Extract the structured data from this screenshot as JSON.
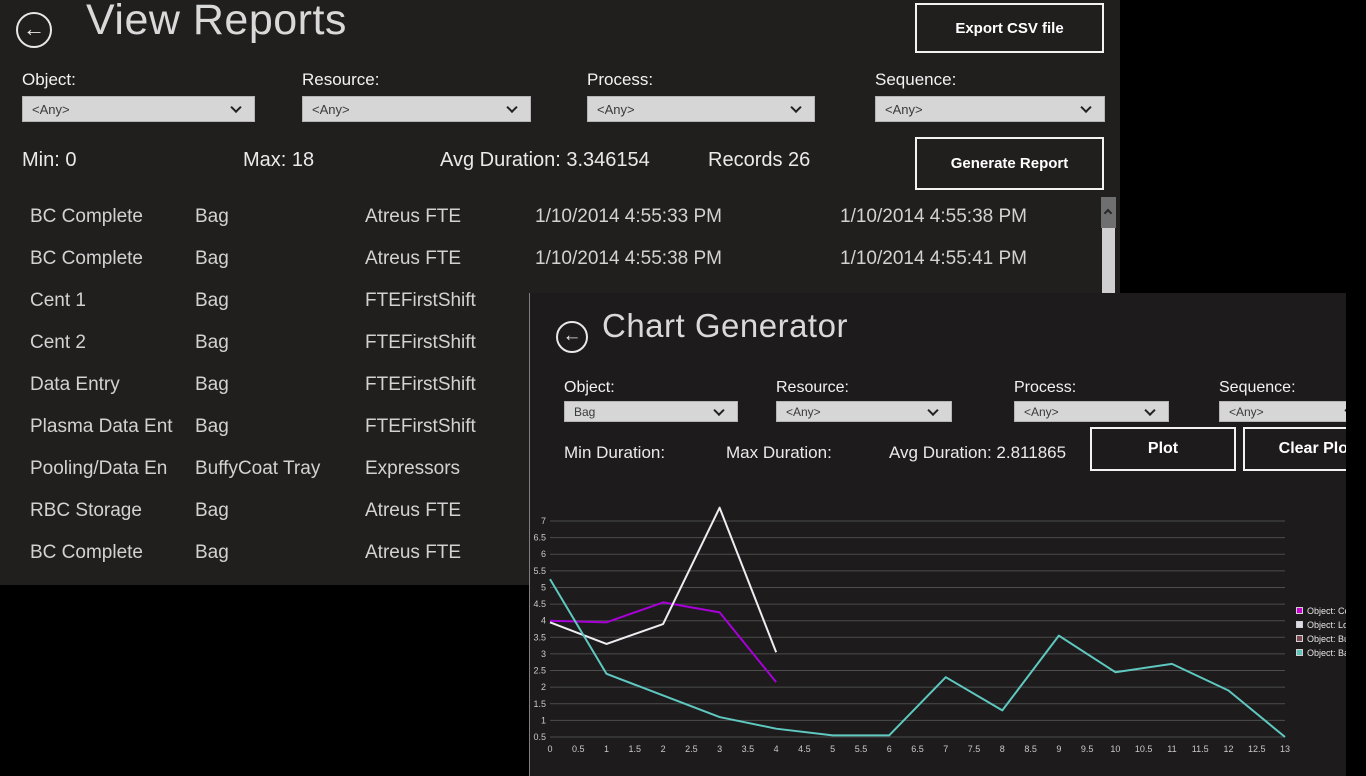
{
  "view_reports": {
    "title": "View Reports",
    "export_button_label": "Export CSV file",
    "generate_button_label": "Generate Report",
    "filters": [
      {
        "label": "Object:",
        "value": "<Any>"
      },
      {
        "label": "Resource:",
        "value": "<Any>"
      },
      {
        "label": "Process:",
        "value": "<Any>"
      },
      {
        "label": "Sequence:",
        "value": "<Any>"
      }
    ],
    "stats": {
      "min": "Min: 0",
      "max": "Max: 18",
      "avg": "Avg Duration: 3.346154",
      "records": "Records 26"
    },
    "table_rows": [
      [
        "BC Complete",
        "Bag",
        "Atreus FTE",
        "1/10/2014 4:55:33 PM",
        "1/10/2014 4:55:38 PM"
      ],
      [
        "BC Complete",
        "Bag",
        "Atreus FTE",
        "1/10/2014 4:55:38 PM",
        "1/10/2014 4:55:41 PM"
      ],
      [
        "Cent 1",
        "Bag",
        "FTEFirstShift",
        "",
        ""
      ],
      [
        "Cent 2",
        "Bag",
        "FTEFirstShift",
        "",
        ""
      ],
      [
        "Data Entry",
        "Bag",
        "FTEFirstShift",
        "",
        ""
      ],
      [
        "Plasma Data Ent",
        "Bag",
        "FTEFirstShift",
        "",
        ""
      ],
      [
        "Pooling/Data En",
        "BuffyCoat Tray",
        "Expressors",
        "",
        ""
      ],
      [
        "RBC Storage",
        "Bag",
        "Atreus FTE",
        "",
        ""
      ],
      [
        "BC Complete",
        "Bag",
        "Atreus FTE",
        "",
        ""
      ]
    ]
  },
  "chart_generator": {
    "title": "Chart Generator",
    "plot_button_label": "Plot",
    "clear_button_label": "Clear Plot",
    "filters": [
      {
        "label": "Object:",
        "value": "Bag"
      },
      {
        "label": "Resource:",
        "value": "<Any>"
      },
      {
        "label": "Process:",
        "value": "<Any>"
      },
      {
        "label": "Sequence:",
        "value": "<Any>"
      }
    ],
    "stats": {
      "min": "Min Duration:",
      "max": "Max Duration:",
      "avg": "Avg Duration: 2.811865"
    }
  },
  "chart_data": {
    "type": "line",
    "title": "",
    "xlabel": "",
    "ylabel": "",
    "xlim": [
      0,
      13
    ],
    "xtick_step": 0.5,
    "ylim": [
      0.5,
      7
    ],
    "ytick_step": 0.5,
    "grid": "horizontal-only",
    "legend_position": "right",
    "series": [
      {
        "name": "Object: Coole",
        "color": "#a800d8",
        "x_start": 0,
        "values": [
          4.0,
          3.95,
          4.55,
          4.25,
          2.15
        ]
      },
      {
        "name": "Object: Lot",
        "color": "#ededf2",
        "x_start": 0,
        "values": [
          3.95,
          3.3,
          3.9,
          7.4,
          3.05
        ]
      },
      {
        "name": "Object: BuffyC",
        "color": "#7c4850",
        "x_start": 0,
        "values": []
      },
      {
        "name": "Object: Bag",
        "color": "#5fc8c0",
        "x_start": 0,
        "values": [
          5.25,
          2.4,
          1.75,
          1.1,
          0.75,
          0.55,
          0.55,
          2.3,
          1.3,
          3.55,
          2.45,
          2.7,
          1.9,
          0.5
        ]
      }
    ],
    "legend_swatch_colors": [
      "#c800d2",
      "#dcdce8",
      "#7c4850",
      "#5ec4bc"
    ]
  }
}
